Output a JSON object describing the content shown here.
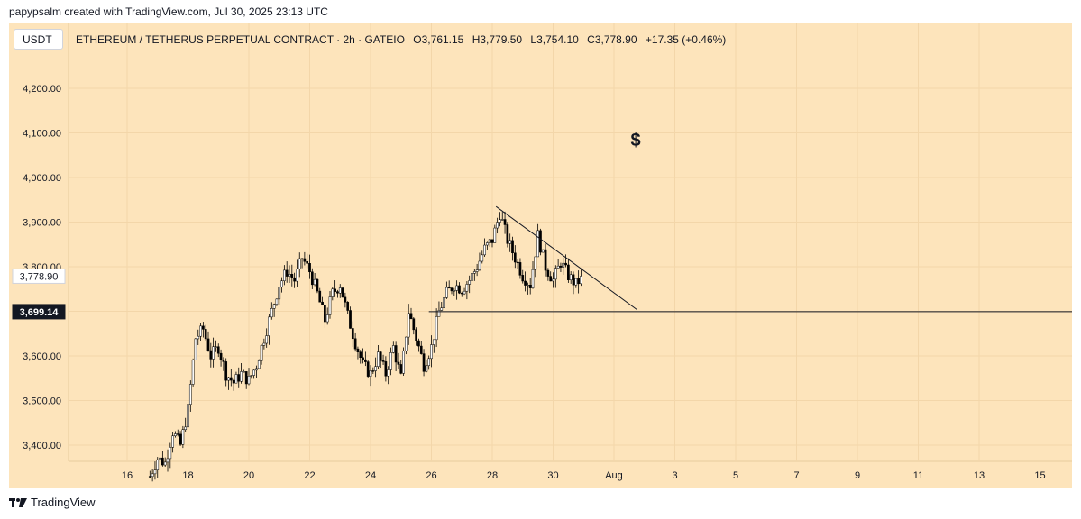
{
  "attribution": "papypsalm created with TradingView.com, Jul 30, 2025 23:13 UTC",
  "unit": "USDT",
  "header": {
    "symbol": "ETHEREUM / TETHERUS PERPETUAL CONTRACT · 2h · GATEIO",
    "open": "O3,761.15",
    "high": "H3,779.50",
    "low": "L3,754.10",
    "close": "C3,778.90",
    "change": "+17.35 (+0.46%)"
  },
  "annotation": "$",
  "brand": "TradingView",
  "colors": {
    "background": "#fde4bb",
    "candle": "#000000",
    "grid": "#f3d6a9"
  },
  "chart_data": {
    "type": "candlestick",
    "ylim": [
      3350,
      4250
    ],
    "y_ticks": [
      3400,
      3500,
      3600,
      3700,
      3800,
      3900,
      4000,
      4100,
      4200
    ],
    "y_tick_labels": [
      "3,400.00",
      "3,500.00",
      "3,600.00",
      "3,700.00",
      "3,800.00",
      "3,900.00",
      "4,000.00",
      "4,100.00",
      "4,200.00"
    ],
    "x_range_days": [
      "2025-07-15",
      "2025-08-16"
    ],
    "x_ticks": [
      {
        "date": "2025-07-16",
        "label": "16"
      },
      {
        "date": "2025-07-18",
        "label": "18"
      },
      {
        "date": "2025-07-20",
        "label": "20"
      },
      {
        "date": "2025-07-22",
        "label": "22"
      },
      {
        "date": "2025-07-24",
        "label": "24"
      },
      {
        "date": "2025-07-26",
        "label": "26"
      },
      {
        "date": "2025-07-28",
        "label": "28"
      },
      {
        "date": "2025-07-30",
        "label": "30"
      },
      {
        "date": "2025-08-01",
        "label": "Aug"
      },
      {
        "date": "2025-08-03",
        "label": "3"
      },
      {
        "date": "2025-08-05",
        "label": "5"
      },
      {
        "date": "2025-08-07",
        "label": "7"
      },
      {
        "date": "2025-08-09",
        "label": "9"
      },
      {
        "date": "2025-08-11",
        "label": "11"
      },
      {
        "date": "2025-08-13",
        "label": "13"
      },
      {
        "date": "2025-08-15",
        "label": "15"
      }
    ],
    "price_labels": [
      {
        "value": 3778.9,
        "label": "3,778.90",
        "style": "light"
      },
      {
        "value": 3699.14,
        "label": "3,699.14",
        "style": "dark"
      }
    ],
    "path_points": [
      [
        "2025-07-16T18:00",
        3330
      ],
      [
        "2025-07-17T00:00",
        3370
      ],
      [
        "2025-07-17T06:00",
        3360
      ],
      [
        "2025-07-17T12:00",
        3430
      ],
      [
        "2025-07-17T18:00",
        3400
      ],
      [
        "2025-07-18T00:00",
        3480
      ],
      [
        "2025-07-18T06:00",
        3640
      ],
      [
        "2025-07-18T12:00",
        3660
      ],
      [
        "2025-07-18T18:00",
        3600
      ],
      [
        "2025-07-19T00:00",
        3620
      ],
      [
        "2025-07-19T06:00",
        3560
      ],
      [
        "2025-07-19T12:00",
        3540
      ],
      [
        "2025-07-19T18:00",
        3560
      ],
      [
        "2025-07-20T00:00",
        3545
      ],
      [
        "2025-07-20T06:00",
        3580
      ],
      [
        "2025-07-20T12:00",
        3640
      ],
      [
        "2025-07-20T18:00",
        3700
      ],
      [
        "2025-07-21T00:00",
        3760
      ],
      [
        "2025-07-21T06:00",
        3790
      ],
      [
        "2025-07-21T12:00",
        3770
      ],
      [
        "2025-07-21T18:00",
        3820
      ],
      [
        "2025-07-22T00:00",
        3790
      ],
      [
        "2025-07-22T06:00",
        3740
      ],
      [
        "2025-07-22T12:00",
        3680
      ],
      [
        "2025-07-22T18:00",
        3740
      ],
      [
        "2025-07-23T00:00",
        3760
      ],
      [
        "2025-07-23T06:00",
        3690
      ],
      [
        "2025-07-23T12:00",
        3630
      ],
      [
        "2025-07-23T18:00",
        3580
      ],
      [
        "2025-07-24T00:00",
        3560
      ],
      [
        "2025-07-24T06:00",
        3600
      ],
      [
        "2025-07-24T12:00",
        3560
      ],
      [
        "2025-07-24T18:00",
        3620
      ],
      [
        "2025-07-25T00:00",
        3550
      ],
      [
        "2025-07-25T06:00",
        3700
      ],
      [
        "2025-07-25T12:00",
        3640
      ],
      [
        "2025-07-25T18:00",
        3580
      ],
      [
        "2025-07-26T00:00",
        3620
      ],
      [
        "2025-07-26T06:00",
        3700
      ],
      [
        "2025-07-26T12:00",
        3740
      ],
      [
        "2025-07-26T18:00",
        3760
      ],
      [
        "2025-07-27T00:00",
        3750
      ],
      [
        "2025-07-27T06:00",
        3770
      ],
      [
        "2025-07-27T12:00",
        3800
      ],
      [
        "2025-07-27T18:00",
        3840
      ],
      [
        "2025-07-28T00:00",
        3860
      ],
      [
        "2025-07-28T06:00",
        3920
      ],
      [
        "2025-07-28T12:00",
        3860
      ],
      [
        "2025-07-28T18:00",
        3820
      ],
      [
        "2025-07-29T00:00",
        3780
      ],
      [
        "2025-07-29T06:00",
        3760
      ],
      [
        "2025-07-29T12:00",
        3870
      ],
      [
        "2025-07-29T18:00",
        3800
      ],
      [
        "2025-07-30T00:00",
        3770
      ],
      [
        "2025-07-30T06:00",
        3810
      ],
      [
        "2025-07-30T12:00",
        3780
      ],
      [
        "2025-07-30T18:00",
        3760
      ],
      [
        "2025-07-30T23:00",
        3778.9
      ]
    ],
    "trendlines": [
      {
        "from": [
          "2025-07-28T03:00",
          3935
        ],
        "to": [
          "2025-08-01T18:00",
          3704
        ]
      },
      {
        "from": [
          "2025-07-25T22:00",
          3699.14
        ],
        "to": [
          "2025-08-16T23:00",
          3699.14
        ]
      }
    ]
  }
}
